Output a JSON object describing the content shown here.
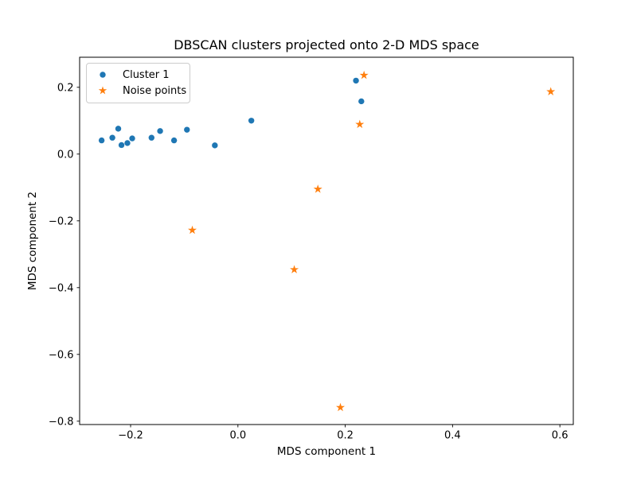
{
  "chart_data": {
    "type": "scatter",
    "title": "DBSCAN clusters projected onto 2-D MDS space",
    "xlabel": "MDS component 1",
    "ylabel": "MDS component 2",
    "xlim": [
      -0.295,
      0.625
    ],
    "ylim": [
      -0.81,
      0.29
    ],
    "xticks": [
      -0.2,
      0.0,
      0.2,
      0.4,
      0.6
    ],
    "yticks": [
      0.2,
      0.0,
      -0.2,
      -0.4,
      -0.6,
      -0.8
    ],
    "grid": false,
    "legend_position": "upper left",
    "background_color": "#ffffff",
    "axes_edge_color": "#000000",
    "series": [
      {
        "name": "Cluster 1",
        "marker": "circle",
        "color": "#1f77b4",
        "points": [
          [
            -0.254,
            0.041
          ],
          [
            -0.234,
            0.049
          ],
          [
            -0.223,
            0.076
          ],
          [
            -0.217,
            0.027
          ],
          [
            -0.206,
            0.033
          ],
          [
            -0.197,
            0.047
          ],
          [
            -0.161,
            0.049
          ],
          [
            -0.145,
            0.069
          ],
          [
            -0.119,
            0.041
          ],
          [
            -0.095,
            0.073
          ],
          [
            -0.043,
            0.026
          ],
          [
            0.025,
            0.1
          ],
          [
            0.22,
            0.22
          ],
          [
            0.23,
            0.158
          ]
        ]
      },
      {
        "name": "Noise points",
        "marker": "star",
        "color": "#ff7f0e",
        "points": [
          [
            0.235,
            0.236
          ],
          [
            0.227,
            0.089
          ],
          [
            0.583,
            0.187
          ],
          [
            0.149,
            -0.105
          ],
          [
            -0.085,
            -0.228
          ],
          [
            0.105,
            -0.346
          ],
          [
            0.191,
            -0.759
          ]
        ]
      }
    ]
  }
}
